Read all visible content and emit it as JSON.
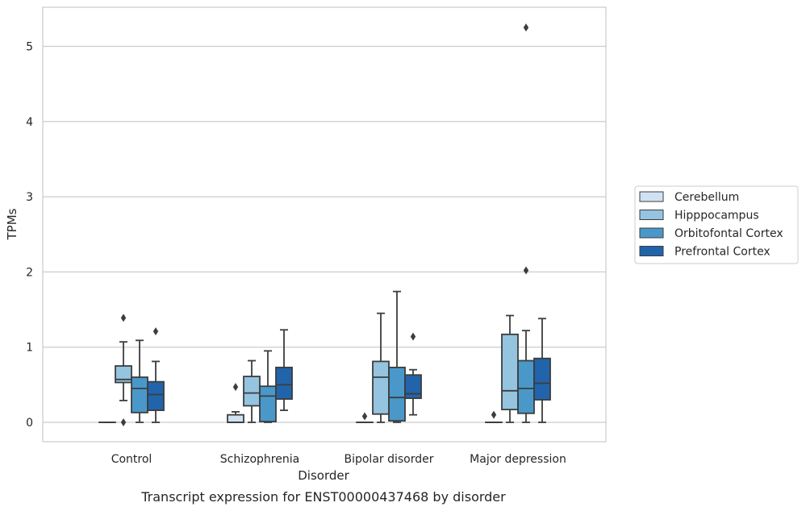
{
  "chart_data": {
    "type": "box",
    "title": "Transcript expression for ENST00000437468 by disorder",
    "xlabel": "Disorder",
    "ylabel": "TPMs",
    "ylim": [
      -0.25,
      5.5
    ],
    "yticks": [
      0,
      1,
      2,
      3,
      4,
      5
    ],
    "grid": true,
    "legend_position": "right",
    "categories": [
      "Control",
      "Schizophrenia",
      "Bipolar disorder",
      "Major depression"
    ],
    "series": [
      {
        "name": "Cerebellum",
        "color": "#d0e1f2",
        "boxes": [
          {
            "whisker_low": 0,
            "q1": 0,
            "median": 0,
            "q3": 0,
            "whisker_high": 0,
            "outliers": []
          },
          {
            "whisker_low": 0,
            "q1": 0,
            "median": 0,
            "q3": 0.1,
            "whisker_high": 0.14,
            "outliers": [
              0.47
            ]
          },
          {
            "whisker_low": 0,
            "q1": 0,
            "median": 0,
            "q3": 0,
            "whisker_high": 0,
            "outliers": [
              0.08
            ]
          },
          {
            "whisker_low": 0,
            "q1": 0,
            "median": 0,
            "q3": 0,
            "whisker_high": 0,
            "outliers": [
              0.1
            ]
          }
        ]
      },
      {
        "name": "Hipppocampus",
        "color": "#94c4df",
        "boxes": [
          {
            "whisker_low": 0.29,
            "q1": 0.53,
            "median": 0.57,
            "q3": 0.75,
            "whisker_high": 1.07,
            "outliers": [
              1.39,
              0
            ]
          },
          {
            "whisker_low": 0,
            "q1": 0.22,
            "median": 0.39,
            "q3": 0.61,
            "whisker_high": 0.82,
            "outliers": []
          },
          {
            "whisker_low": 0,
            "q1": 0.11,
            "median": 0.6,
            "q3": 0.81,
            "whisker_high": 1.45,
            "outliers": []
          },
          {
            "whisker_low": 0,
            "q1": 0.17,
            "median": 0.42,
            "q3": 1.17,
            "whisker_high": 1.42,
            "outliers": []
          }
        ]
      },
      {
        "name": "Orbitofontal Cortex",
        "color": "#4a98c9",
        "boxes": [
          {
            "whisker_low": 0,
            "q1": 0.13,
            "median": 0.45,
            "q3": 0.6,
            "whisker_high": 1.09,
            "outliers": []
          },
          {
            "whisker_low": 0,
            "q1": 0.01,
            "median": 0.35,
            "q3": 0.48,
            "whisker_high": 0.95,
            "outliers": []
          },
          {
            "whisker_low": 0,
            "q1": 0.02,
            "median": 0.33,
            "q3": 0.73,
            "whisker_high": 1.74,
            "outliers": []
          },
          {
            "whisker_low": 0,
            "q1": 0.12,
            "median": 0.45,
            "q3": 0.82,
            "whisker_high": 1.22,
            "outliers": [
              2.02,
              5.25
            ]
          }
        ]
      },
      {
        "name": "Prefrontal Cortex",
        "color": "#2164ab",
        "boxes": [
          {
            "whisker_low": 0,
            "q1": 0.16,
            "median": 0.37,
            "q3": 0.54,
            "whisker_high": 0.81,
            "outliers": [
              1.21
            ]
          },
          {
            "whisker_low": 0.16,
            "q1": 0.31,
            "median": 0.5,
            "q3": 0.73,
            "whisker_high": 1.23,
            "outliers": []
          },
          {
            "whisker_low": 0.1,
            "q1": 0.32,
            "median": 0.38,
            "q3": 0.63,
            "whisker_high": 0.7,
            "outliers": [
              1.14
            ]
          },
          {
            "whisker_low": 0,
            "q1": 0.3,
            "median": 0.52,
            "q3": 0.85,
            "whisker_high": 1.38,
            "outliers": []
          }
        ]
      }
    ]
  }
}
